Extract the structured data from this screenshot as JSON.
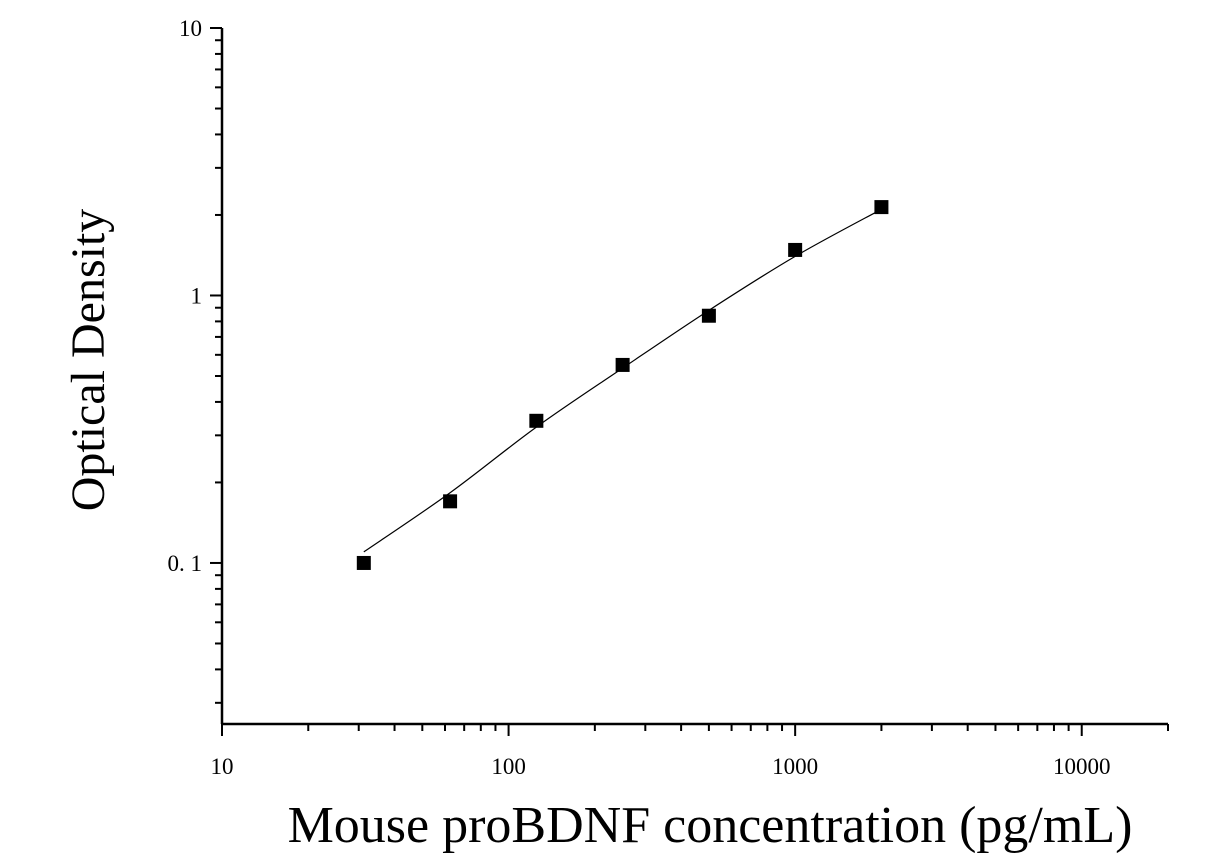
{
  "chart_data": {
    "type": "scatter",
    "title": "",
    "xlabel": "Mouse proBDNF concentration (pg/mL)",
    "ylabel": "Optical Density",
    "x_scale": "log",
    "y_scale": "log",
    "xlim": [
      10,
      20000
    ],
    "ylim": [
      0.025,
      10
    ],
    "x_ticks": [
      {
        "value": 10,
        "label": "10"
      },
      {
        "value": 100,
        "label": "100"
      },
      {
        "value": 1000,
        "label": "1000"
      },
      {
        "value": 10000,
        "label": "10000"
      }
    ],
    "y_ticks": [
      {
        "value": 0.1,
        "label": "0. 1"
      },
      {
        "value": 1,
        "label": "1"
      },
      {
        "value": 10,
        "label": "10"
      }
    ],
    "grid": false,
    "series": [
      {
        "marker": "square",
        "color": "#000000",
        "x": [
          31.25,
          62.5,
          125,
          250,
          500,
          1000,
          2000
        ],
        "y": [
          0.1,
          0.17,
          0.34,
          0.55,
          0.84,
          1.48,
          2.14
        ]
      }
    ],
    "fit_curve": {
      "color": "#000000",
      "x": [
        31.25,
        62.5,
        125,
        250,
        500,
        1000,
        2000
      ],
      "y": [
        0.11,
        0.183,
        0.322,
        0.535,
        0.88,
        1.4,
        2.1
      ]
    }
  }
}
